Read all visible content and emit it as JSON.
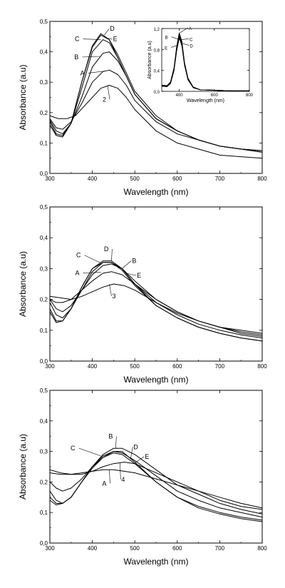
{
  "chart_data": [
    {
      "type": "line",
      "xlabel": "Wavelength  (nm)",
      "ylabel": "Absorbance  (a.u)",
      "xlim": [
        300,
        800
      ],
      "ylim": [
        0,
        0.5
      ],
      "xticks": [
        "300",
        "400",
        "500",
        "600",
        "700",
        "800"
      ],
      "yticks": [
        "0,0",
        "0,1",
        "0,2",
        "0,3",
        "0,4",
        "0,5"
      ],
      "series": [
        {
          "name": "A",
          "x": [
            300,
            315,
            330,
            350,
            375,
            400,
            425,
            440,
            460,
            480,
            500,
            550,
            600,
            650,
            700,
            750,
            800
          ],
          "y": [
            0.18,
            0.15,
            0.145,
            0.17,
            0.23,
            0.3,
            0.335,
            0.34,
            0.325,
            0.29,
            0.24,
            0.17,
            0.13,
            0.11,
            0.09,
            0.08,
            0.07
          ]
        },
        {
          "name": "B",
          "x": [
            300,
            315,
            330,
            350,
            375,
            400,
            425,
            440,
            460,
            480,
            500,
            550,
            600,
            650,
            700,
            750,
            800
          ],
          "y": [
            0.175,
            0.14,
            0.13,
            0.165,
            0.25,
            0.35,
            0.395,
            0.4,
            0.37,
            0.32,
            0.26,
            0.18,
            0.14,
            0.11,
            0.09,
            0.08,
            0.07
          ]
        },
        {
          "name": "C",
          "x": [
            300,
            315,
            330,
            350,
            375,
            400,
            425,
            440,
            460,
            480,
            500,
            550,
            600,
            650,
            700,
            750,
            800
          ],
          "y": [
            0.17,
            0.13,
            0.125,
            0.165,
            0.28,
            0.4,
            0.44,
            0.43,
            0.38,
            0.32,
            0.26,
            0.18,
            0.14,
            0.11,
            0.09,
            0.08,
            0.07
          ]
        },
        {
          "name": "D",
          "x": [
            300,
            315,
            330,
            350,
            375,
            400,
            420,
            440,
            460,
            480,
            500,
            550,
            600,
            650,
            700,
            750,
            800
          ],
          "y": [
            0.16,
            0.125,
            0.12,
            0.165,
            0.3,
            0.42,
            0.46,
            0.44,
            0.38,
            0.32,
            0.26,
            0.18,
            0.14,
            0.11,
            0.09,
            0.08,
            0.075
          ]
        },
        {
          "name": "E",
          "x": [
            300,
            315,
            330,
            350,
            375,
            400,
            420,
            440,
            460,
            480,
            500,
            550,
            600,
            650,
            700,
            750,
            800
          ],
          "y": [
            0.16,
            0.125,
            0.12,
            0.165,
            0.3,
            0.415,
            0.455,
            0.44,
            0.39,
            0.33,
            0.27,
            0.19,
            0.14,
            0.11,
            0.09,
            0.08,
            0.075
          ]
        },
        {
          "name": "2",
          "x": [
            300,
            320,
            340,
            360,
            380,
            400,
            420,
            440,
            460,
            480,
            500,
            550,
            600,
            650,
            700,
            750,
            800
          ],
          "y": [
            0.19,
            0.18,
            0.18,
            0.19,
            0.22,
            0.25,
            0.28,
            0.29,
            0.28,
            0.25,
            0.21,
            0.14,
            0.1,
            0.08,
            0.06,
            0.055,
            0.05
          ]
        }
      ],
      "inset": {
        "xlabel": "Wavelength  (nm)",
        "ylabel": "Absorbance  (a.u)",
        "xlim": [
          300,
          800
        ],
        "ylim": [
          0,
          1.2
        ],
        "xticks": [
          "400",
          "600",
          "800"
        ],
        "yticks": [
          "0,0",
          "0,4",
          "0,8",
          "1,2"
        ],
        "series": [
          {
            "name": "A",
            "x": [
              300,
              330,
              350,
              370,
              385,
              400,
              415,
              430,
              450,
              480,
              520,
              600,
              700,
              800
            ],
            "y": [
              0.12,
              0.11,
              0.18,
              0.45,
              0.85,
              1.12,
              0.95,
              0.55,
              0.25,
              0.08,
              0.03,
              0.02,
              0.01,
              0.01
            ]
          },
          {
            "name": "B",
            "x": [
              300,
              330,
              350,
              370,
              385,
              400,
              415,
              430,
              450,
              480,
              520,
              600,
              700,
              800
            ],
            "y": [
              0.11,
              0.1,
              0.17,
              0.43,
              0.82,
              1.1,
              0.93,
              0.53,
              0.24,
              0.08,
              0.03,
              0.02,
              0.01,
              0.01
            ]
          },
          {
            "name": "C",
            "x": [
              300,
              330,
              350,
              370,
              385,
              400,
              415,
              430,
              450,
              480,
              520,
              600,
              700,
              800
            ],
            "y": [
              0.1,
              0.09,
              0.16,
              0.42,
              0.8,
              1.07,
              0.9,
              0.52,
              0.23,
              0.07,
              0.03,
              0.02,
              0.01,
              0.01
            ]
          },
          {
            "name": "D",
            "x": [
              300,
              330,
              350,
              370,
              385,
              400,
              415,
              430,
              450,
              480,
              520,
              600,
              700,
              800
            ],
            "y": [
              0.1,
              0.09,
              0.15,
              0.4,
              0.78,
              1.04,
              0.88,
              0.5,
              0.22,
              0.07,
              0.03,
              0.02,
              0.01,
              0.01
            ]
          },
          {
            "name": "E",
            "x": [
              300,
              330,
              350,
              370,
              385,
              400,
              415,
              430,
              450,
              480,
              520,
              600,
              700,
              800
            ],
            "y": [
              0.1,
              0.09,
              0.15,
              0.4,
              0.77,
              1.02,
              0.87,
              0.5,
              0.22,
              0.07,
              0.03,
              0.02,
              0.01,
              0.01
            ]
          }
        ]
      }
    },
    {
      "type": "line",
      "xlabel": "Wavelength  (nm)",
      "ylabel": "Absorbance  (a.u)",
      "xlim": [
        300,
        800
      ],
      "ylim": [
        0,
        0.5
      ],
      "xticks": [
        "300",
        "400",
        "500",
        "600",
        "700",
        "800"
      ],
      "yticks": [
        "0,0",
        "0,1",
        "0,2",
        "0,3",
        "0,4",
        "0,5"
      ],
      "series": [
        {
          "name": "A",
          "x": [
            300,
            315,
            330,
            350,
            375,
            400,
            425,
            445,
            470,
            500,
            550,
            600,
            650,
            700,
            750,
            800
          ],
          "y": [
            0.2,
            0.19,
            0.19,
            0.2,
            0.23,
            0.26,
            0.285,
            0.29,
            0.28,
            0.25,
            0.2,
            0.16,
            0.13,
            0.11,
            0.095,
            0.085
          ]
        },
        {
          "name": "B",
          "x": [
            300,
            315,
            330,
            350,
            375,
            400,
            425,
            445,
            470,
            500,
            550,
            600,
            650,
            700,
            750,
            800
          ],
          "y": [
            0.2,
            0.17,
            0.16,
            0.18,
            0.23,
            0.28,
            0.31,
            0.315,
            0.3,
            0.26,
            0.2,
            0.16,
            0.13,
            0.11,
            0.09,
            0.08
          ]
        },
        {
          "name": "C",
          "x": [
            300,
            315,
            330,
            350,
            375,
            400,
            425,
            445,
            470,
            500,
            550,
            600,
            650,
            700,
            750,
            800
          ],
          "y": [
            0.19,
            0.15,
            0.14,
            0.17,
            0.23,
            0.29,
            0.32,
            0.32,
            0.3,
            0.25,
            0.19,
            0.15,
            0.12,
            0.1,
            0.085,
            0.075
          ]
        },
        {
          "name": "D",
          "x": [
            300,
            315,
            330,
            350,
            375,
            400,
            425,
            445,
            470,
            500,
            550,
            600,
            650,
            700,
            750,
            800
          ],
          "y": [
            0.17,
            0.13,
            0.13,
            0.17,
            0.24,
            0.3,
            0.325,
            0.325,
            0.3,
            0.25,
            0.18,
            0.14,
            0.11,
            0.09,
            0.075,
            0.065
          ]
        },
        {
          "name": "E",
          "x": [
            300,
            315,
            330,
            350,
            375,
            400,
            425,
            445,
            470,
            500,
            550,
            600,
            650,
            700,
            750,
            800
          ],
          "y": [
            0.16,
            0.125,
            0.13,
            0.17,
            0.24,
            0.3,
            0.32,
            0.32,
            0.295,
            0.245,
            0.18,
            0.14,
            0.11,
            0.09,
            0.075,
            0.065
          ]
        },
        {
          "name": "3",
          "x": [
            300,
            325,
            350,
            375,
            400,
            425,
            450,
            475,
            500,
            550,
            600,
            650,
            700,
            750,
            800
          ],
          "y": [
            0.21,
            0.205,
            0.2,
            0.21,
            0.225,
            0.24,
            0.25,
            0.245,
            0.23,
            0.19,
            0.155,
            0.13,
            0.11,
            0.1,
            0.09
          ]
        }
      ]
    },
    {
      "type": "line",
      "xlabel": "Wavelength  (nm)",
      "ylabel": "Absorbance  (a.u)",
      "xlim": [
        300,
        800
      ],
      "ylim": [
        0,
        0.5
      ],
      "xticks": [
        "300",
        "400",
        "500",
        "600",
        "700",
        "800"
      ],
      "yticks": [
        "0,0",
        "0,1",
        "0,2",
        "0,3",
        "0,4",
        "0,5"
      ],
      "series": [
        {
          "name": "A",
          "x": [
            300,
            325,
            350,
            375,
            400,
            425,
            450,
            475,
            500,
            550,
            600,
            650,
            700,
            750,
            800
          ],
          "y": [
            0.23,
            0.225,
            0.225,
            0.23,
            0.235,
            0.24,
            0.24,
            0.235,
            0.23,
            0.21,
            0.19,
            0.17,
            0.15,
            0.13,
            0.115
          ]
        },
        {
          "name": "B",
          "x": [
            300,
            315,
            330,
            350,
            375,
            400,
            425,
            450,
            470,
            500,
            550,
            600,
            650,
            700,
            750,
            800
          ],
          "y": [
            0.2,
            0.18,
            0.17,
            0.18,
            0.21,
            0.25,
            0.29,
            0.31,
            0.31,
            0.29,
            0.24,
            0.19,
            0.16,
            0.13,
            0.11,
            0.095
          ]
        },
        {
          "name": "C",
          "x": [
            300,
            315,
            330,
            350,
            375,
            400,
            425,
            450,
            470,
            500,
            550,
            600,
            650,
            700,
            750,
            800
          ],
          "y": [
            0.17,
            0.14,
            0.13,
            0.15,
            0.2,
            0.25,
            0.285,
            0.3,
            0.295,
            0.27,
            0.22,
            0.17,
            0.14,
            0.115,
            0.1,
            0.085
          ]
        },
        {
          "name": "D",
          "x": [
            300,
            315,
            330,
            350,
            375,
            400,
            425,
            450,
            470,
            500,
            550,
            600,
            650,
            700,
            750,
            800
          ],
          "y": [
            0.15,
            0.13,
            0.13,
            0.15,
            0.2,
            0.25,
            0.28,
            0.3,
            0.3,
            0.265,
            0.2,
            0.15,
            0.12,
            0.1,
            0.085,
            0.075
          ]
        },
        {
          "name": "E",
          "x": [
            300,
            315,
            330,
            350,
            375,
            400,
            425,
            450,
            470,
            500,
            550,
            600,
            650,
            700,
            750,
            800
          ],
          "y": [
            0.14,
            0.125,
            0.13,
            0.15,
            0.2,
            0.245,
            0.28,
            0.295,
            0.29,
            0.26,
            0.2,
            0.15,
            0.115,
            0.095,
            0.08,
            0.07
          ]
        },
        {
          "name": "4",
          "x": [
            300,
            325,
            350,
            375,
            400,
            425,
            450,
            475,
            500,
            550,
            600,
            650,
            700,
            750,
            800
          ],
          "y": [
            0.24,
            0.23,
            0.225,
            0.225,
            0.235,
            0.25,
            0.26,
            0.265,
            0.26,
            0.23,
            0.2,
            0.17,
            0.14,
            0.12,
            0.11
          ]
        }
      ]
    }
  ]
}
